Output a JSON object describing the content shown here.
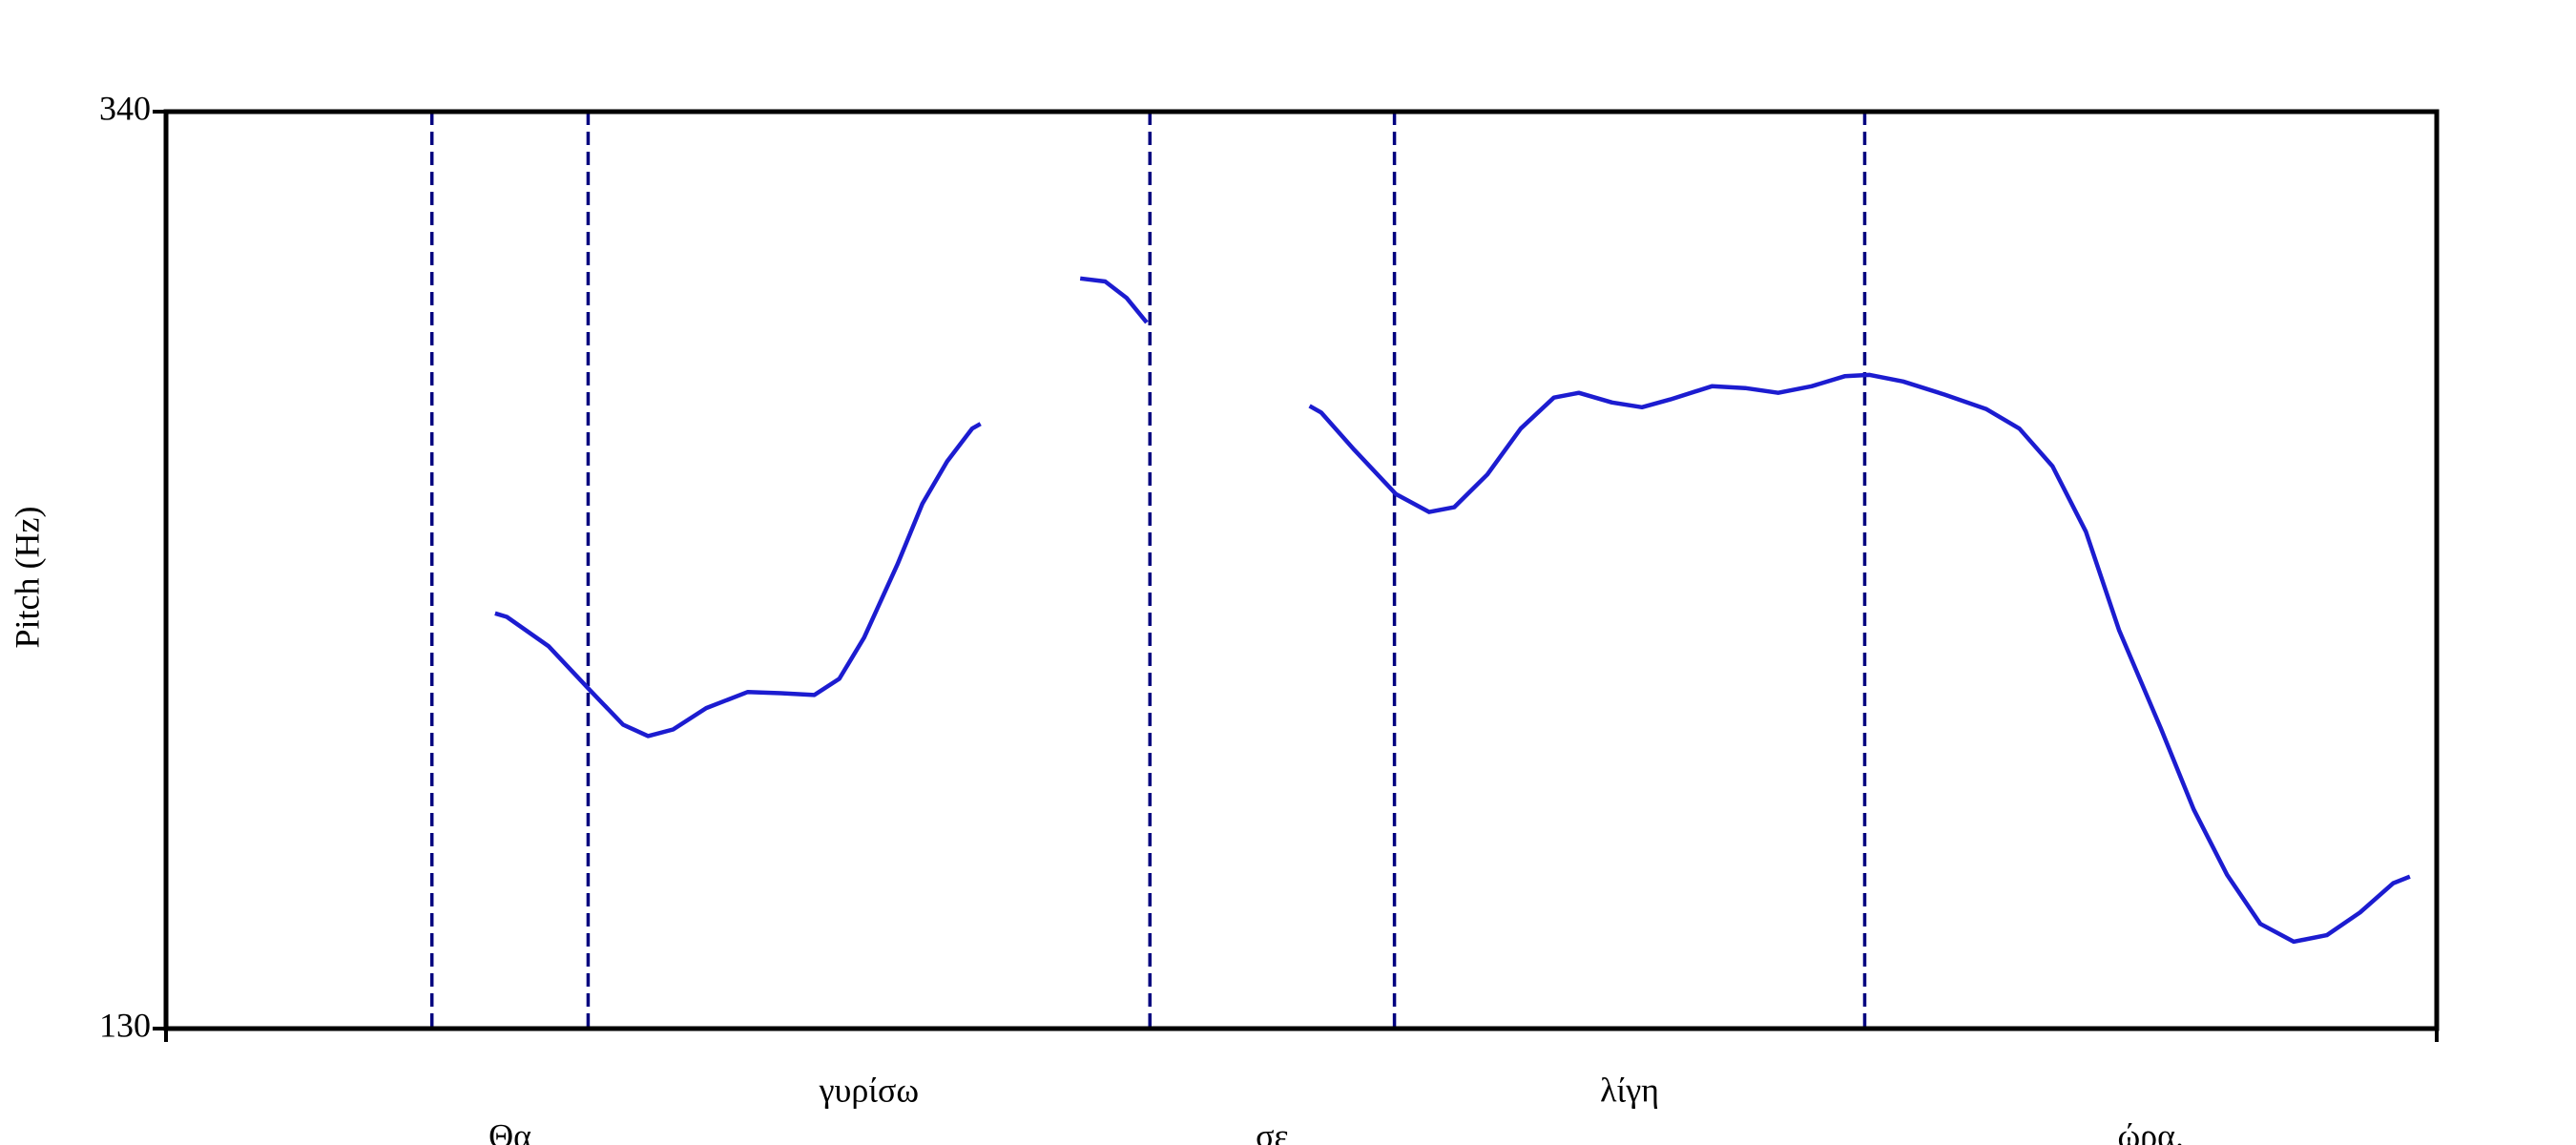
{
  "chart_data": {
    "type": "line",
    "y_label": "Pitch (Hz)",
    "ylim": [
      130,
      340
    ],
    "yticks": [
      130,
      340
    ],
    "xlim": [
      0,
      1000
    ],
    "x": [
      144.9,
      150.1,
      168.4,
      186.7,
      201.3,
      212.3,
      223.3,
      237.9,
      256.2,
      270.8,
      285.5,
      296.5,
      307.4,
      322.1,
      333.1,
      344.0,
      355.0,
      358.7,
      380.0,
      402.6,
      413.6,
      423.1,
      431.9,
      470.0,
      503.6,
      508.7,
      523.4,
      541.7,
      556.3,
      567.3,
      581.9,
      596.6,
      611.2,
      622.2,
      636.8,
      650.0,
      662.5,
      680.8,
      695.4,
      710.0,
      724.7,
      739.3,
      750.3,
      765.0,
      783.2,
      801.5,
      816.2,
      830.8,
      845.5,
      860.1,
      878.4,
      893.0,
      907.7,
      922.3,
      937.0,
      951.6,
      966.2,
      980.9,
      988.2
    ],
    "series": [
      {
        "color": "#1c1cd0",
        "values": [
          225.1,
          224.3,
          217.6,
          207.5,
          199.6,
          197.0,
          198.5,
          203.4,
          207.1,
          206.8,
          206.4,
          210.1,
          219.5,
          236.3,
          250.2,
          259.9,
          267.4,
          268.5,
          null,
          301.8,
          301.1,
          297.3,
          291.7,
          null,
          272.6,
          271.1,
          262.5,
          252.4,
          248.3,
          249.4,
          256.9,
          267.4,
          274.5,
          275.6,
          273.4,
          272.3,
          274.1,
          277.1,
          276.7,
          275.6,
          277.1,
          279.4,
          279.7,
          278.2,
          275.2,
          271.9,
          267.4,
          258.8,
          243.8,
          221.3,
          198.9,
          180.2,
          165.2,
          154.0,
          149.9,
          151.4,
          156.6,
          163.3,
          164.8
        ]
      }
    ],
    "boundaries": [
      117.1,
      185.9,
      433.3,
      541.0,
      748.1
    ],
    "boundary_color": "#00007f",
    "words": [
      "Θα",
      "γυρίσω",
      "σε",
      "λίγη",
      "ώρα."
    ]
  }
}
